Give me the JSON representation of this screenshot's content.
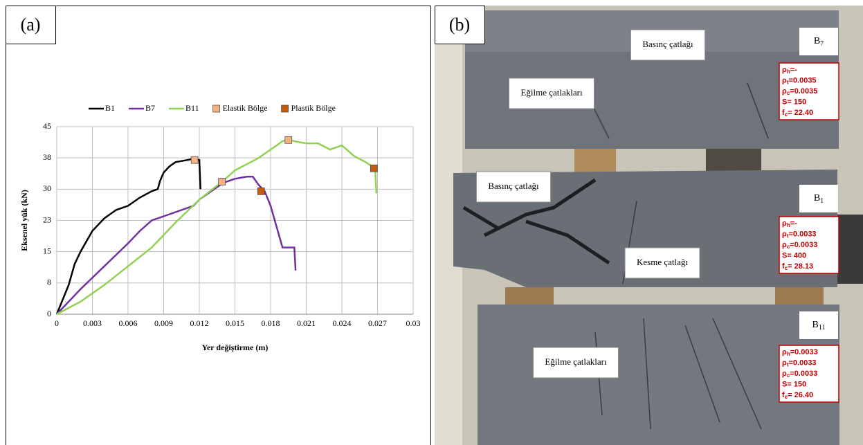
{
  "panels": {
    "a": "(a)",
    "b": "(b)"
  },
  "photo": {
    "labels": [
      "Basınç çatlağı",
      "Eğilme çatlakları",
      "Basınç çatlağı",
      "Kesme çatlağı",
      "Eğilme çatlakları"
    ],
    "beams": [
      {
        "id": [
          "B",
          "7"
        ],
        "notes": [
          [
            "ρ",
            "h",
            "=-"
          ],
          [
            "ρ",
            "t",
            "=0.0035"
          ],
          [
            "ρ",
            "c",
            "=0.0035"
          ],
          [
            "S= 150"
          ],
          [
            "f",
            "c",
            "= 22.40"
          ]
        ]
      },
      {
        "id": [
          "B",
          "1"
        ],
        "notes": [
          [
            "ρ",
            "h",
            "=-"
          ],
          [
            "ρ",
            "t",
            "=0.0033"
          ],
          [
            "ρ",
            "c",
            "=0.0033"
          ],
          [
            "S= 400"
          ],
          [
            "f",
            "c",
            "= 28.13"
          ]
        ]
      },
      {
        "id": [
          "B",
          "11"
        ],
        "notes": [
          [
            "ρ",
            "h",
            "=0.0033"
          ],
          [
            "ρ",
            "t",
            "=0.0033"
          ],
          [
            "ρ",
            "c",
            "=0.0033"
          ],
          [
            "S= 150"
          ],
          [
            "f",
            "c",
            "= 26.40"
          ]
        ]
      }
    ]
  },
  "chart_data": {
    "type": "line",
    "x_label": "Yer değiştirme (m)",
    "y_label": "Eksenel yük (kN)",
    "xlim": [
      0,
      0.03
    ],
    "xticks": [
      0,
      0.003,
      0.006,
      0.009,
      0.012,
      0.015,
      0.018,
      0.021,
      0.024,
      0.027,
      0.03
    ],
    "ylim": [
      0,
      45
    ],
    "yticks": [
      0,
      {
        "value": 7.5,
        "label": "8"
      },
      15,
      {
        "value": 22.5,
        "label": "23"
      },
      30,
      {
        "value": 37.5,
        "label": "38"
      },
      45
    ],
    "grid": true,
    "legend": "top",
    "series": [
      {
        "name": "B1",
        "style": "line",
        "color": "#000000",
        "x": [
          0,
          0.001,
          0.0015,
          0.002,
          0.003,
          0.004,
          0.005,
          0.006,
          0.007,
          0.008,
          0.0085,
          0.0087,
          0.009,
          0.0095,
          0.01,
          0.011,
          0.0115,
          0.012,
          0.0121
        ],
        "values": [
          0,
          7,
          12,
          15,
          20,
          23,
          25,
          26,
          28,
          29.5,
          30,
          32,
          34,
          35.5,
          36.5,
          37,
          37.3,
          37,
          30
        ]
      },
      {
        "name": "B7",
        "style": "line",
        "color": "#7030a0",
        "x": [
          0,
          0.002,
          0.004,
          0.006,
          0.007,
          0.008,
          0.009,
          0.01,
          0.011,
          0.0115,
          0.012,
          0.013,
          0.014,
          0.015,
          0.016,
          0.0165,
          0.017,
          0.0175,
          0.018,
          0.019,
          0.0195,
          0.02,
          0.0201
        ],
        "values": [
          0,
          6,
          11.5,
          17,
          20,
          22.5,
          23.5,
          24.5,
          25.5,
          26,
          27.5,
          29.5,
          31.5,
          32.5,
          33,
          33,
          31,
          29.5,
          26,
          16,
          16,
          16,
          10.5
        ]
      },
      {
        "name": "B11",
        "style": "line",
        "color": "#92d050",
        "x": [
          0,
          0.002,
          0.004,
          0.006,
          0.008,
          0.01,
          0.012,
          0.014,
          0.015,
          0.016,
          0.017,
          0.018,
          0.019,
          0.0195,
          0.02,
          0.021,
          0.022,
          0.023,
          0.024,
          0.025,
          0.026,
          0.0268,
          0.0269
        ],
        "values": [
          0,
          3,
          7,
          11.5,
          16,
          22,
          27.5,
          32,
          34.5,
          36,
          37.5,
          39.5,
          41.5,
          42,
          41.5,
          41,
          41,
          39.5,
          40.5,
          38,
          36.5,
          35,
          29
        ]
      },
      {
        "name": "Elastik Bölge",
        "style": "marker",
        "color": "#f4b183",
        "x": [
          0.0116,
          0.0139,
          0.0195
        ],
        "values": [
          37,
          31.8,
          41.8
        ]
      },
      {
        "name": "Plastik Bölge",
        "style": "marker",
        "color": "#c55a11",
        "x": [
          0.0172,
          0.0267
        ],
        "values": [
          29.5,
          35
        ]
      }
    ]
  }
}
